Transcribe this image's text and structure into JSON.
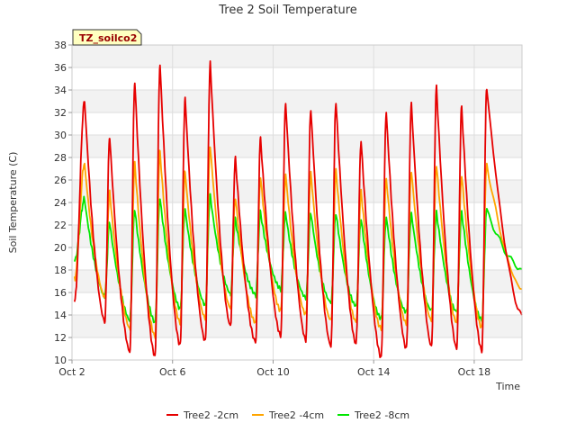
{
  "chart_data": {
    "type": "line",
    "title": "Tree 2 Soil Temperature",
    "site_label": "TZ_soilco2",
    "xlabel": "Time",
    "ylabel": "Soil Temperature (C)",
    "x_unit": "days since Oct 2",
    "xlim": [
      0,
      17.9
    ],
    "ylim": [
      10,
      38
    ],
    "yticks": [
      10,
      12,
      14,
      16,
      18,
      20,
      22,
      24,
      26,
      28,
      30,
      32,
      34,
      36,
      38
    ],
    "xticks": [
      {
        "x": 0,
        "label": "Oct 2"
      },
      {
        "x": 4,
        "label": "Oct 6"
      },
      {
        "x": 8,
        "label": "Oct 10"
      },
      {
        "x": 12,
        "label": "Oct 14"
      },
      {
        "x": 16,
        "label": "Oct 18"
      }
    ],
    "legend_position": "bottom",
    "grid": true,
    "series": [
      {
        "name": "Tree2 -2cm",
        "color": "#e60000",
        "daily_min": [
          13.3,
          10.6,
          10.2,
          11.2,
          11.6,
          13.0,
          11.6,
          12.2,
          11.8,
          11.3,
          11.5,
          10.3,
          11.1,
          11.3,
          11.1,
          10.9
        ],
        "daily_max": [
          33.0,
          29.8,
          34.7,
          36.2,
          33.2,
          36.3,
          27.8,
          29.6,
          32.7,
          32.2,
          32.9,
          29.5,
          32.0,
          32.8,
          34.3,
          32.5,
          34.1
        ],
        "start": 15.2,
        "end": 14.0
      },
      {
        "name": "Tree2 -4cm",
        "color": "#ffa500",
        "daily_min": [
          15.5,
          12.7,
          12.0,
          13.2,
          13.6,
          14.5,
          13.2,
          14.3,
          14.0,
          13.5,
          13.4,
          12.8,
          13.3,
          13.6,
          13.4,
          13.0
        ],
        "daily_max": [
          27.5,
          25.0,
          27.5,
          28.5,
          26.7,
          29.0,
          24.4,
          26.2,
          26.4,
          26.5,
          26.7,
          24.9,
          26.0,
          26.7,
          27.3,
          26.4,
          27.5
        ],
        "start": 17.2,
        "end": 16.3
      },
      {
        "name": "Tree2 -8cm",
        "color": "#00e600",
        "daily_min": [
          15.7,
          13.5,
          13.3,
          14.5,
          14.8,
          15.8,
          15.7,
          16.2,
          15.4,
          15.0,
          14.7,
          13.6,
          14.2,
          14.4,
          14.3,
          13.6
        ],
        "daily_max": [
          24.3,
          22.3,
          23.5,
          24.5,
          23.5,
          24.7,
          22.5,
          23.1,
          23.0,
          23.0,
          23.0,
          22.5,
          22.6,
          22.9,
          23.0,
          23.0,
          23.3
        ],
        "start": 18.8,
        "end": 18.1
      }
    ]
  }
}
